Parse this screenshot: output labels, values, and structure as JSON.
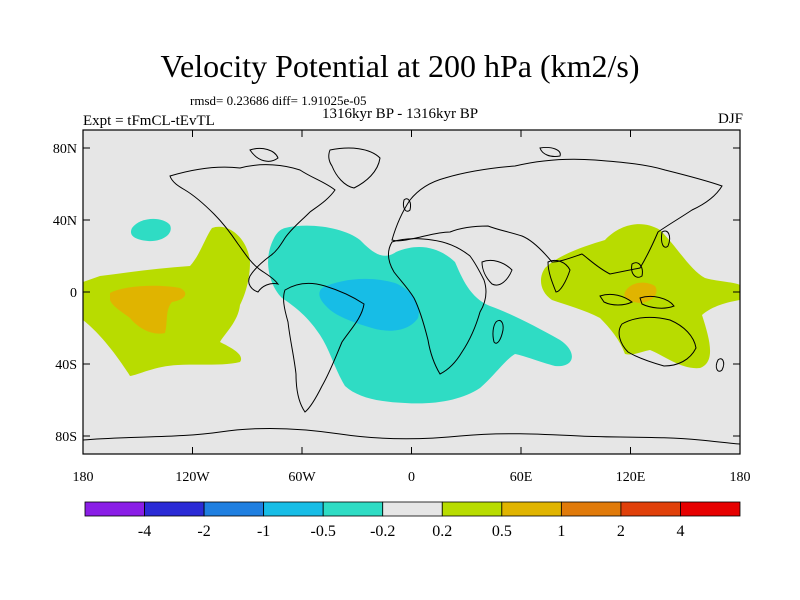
{
  "title": "Velocity Potential at 200 hPa (km2/s)",
  "stats": "rmsd= 0.23686 diff= 1.91025e-05",
  "subtitle": "1316kyr BP - 1316kyr BP",
  "experiment": "Expt = tFmCL-tEvTL",
  "season": "DJF",
  "chart_data": {
    "type": "contour-map",
    "projection": "cylindrical equidistant",
    "variable": "velocity potential difference",
    "units": "km2/s",
    "x_ticks": [
      "180",
      "120W",
      "60W",
      "0",
      "60E",
      "120E",
      "180"
    ],
    "x_tick_values": [
      -180,
      -120,
      -60,
      0,
      60,
      120,
      180
    ],
    "y_ticks": [
      "80N",
      "40N",
      "0",
      "40S",
      "80S"
    ],
    "y_tick_values": [
      80,
      40,
      0,
      -40,
      -80
    ],
    "xlim": [
      -180,
      180
    ],
    "ylim": [
      -90,
      90
    ],
    "colorbar": {
      "levels": [
        "-4",
        "-2",
        "-1",
        "-0.5",
        "-0.2",
        "0.2",
        "0.5",
        "1",
        "2",
        "4"
      ],
      "level_values": [
        -4,
        -2,
        -1,
        -0.5,
        -0.2,
        0.2,
        0.5,
        1,
        2,
        4
      ],
      "colors": [
        "#8a1ee6",
        "#2b2bd6",
        "#1f7fe0",
        "#17bde6",
        "#2fdcc4",
        "#e6e6e6",
        "#b8dc00",
        "#e0b400",
        "#e07a0a",
        "#e0400a",
        "#e60000"
      ]
    },
    "features": [
      {
        "description": "negative anomaly over tropical Americas / Atlantic / Africa",
        "range": "-0.5 to -0.2",
        "lon": [
          -70,
          60
        ],
        "lat": [
          -55,
          38
        ]
      },
      {
        "description": "core minimum over tropical Atlantic / Brazil",
        "range": "-1 to -0.5",
        "lon": [
          -45,
          -5
        ],
        "lat": [
          -18,
          8
        ]
      },
      {
        "description": "small negative cell in North Pacific",
        "range": "-0.5 to -0.2",
        "lon": [
          -150,
          -135
        ],
        "lat": [
          32,
          40
        ]
      },
      {
        "description": "positive anomaly over central and eastern Pacific",
        "range": "0.2 to 0.5",
        "lon": [
          -180,
          -95
        ],
        "lat": [
          -40,
          38
        ]
      },
      {
        "description": "local maximum in central Pacific",
        "range": "0.5 to 1",
        "lon": [
          -175,
          -145
        ],
        "lat": [
          -20,
          2
        ]
      },
      {
        "description": "positive anomaly over Asia / Maritime Continent / West Pacific",
        "range": "0.2 to 0.5",
        "lon": [
          75,
          180
        ],
        "lat": [
          -40,
          40
        ]
      },
      {
        "description": "local maximum over Maritime Continent",
        "range": "0.5 to 1",
        "lon": [
          120,
          135
        ],
        "lat": [
          -5,
          3
        ]
      }
    ]
  }
}
